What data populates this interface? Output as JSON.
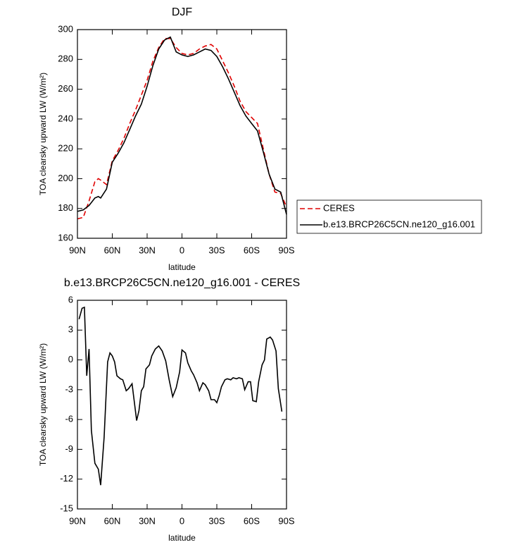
{
  "chart_data": [
    {
      "type": "line",
      "title": "DJF",
      "xlabel": "latitude",
      "ylabel": "TOA clearsky upward LW (W/m²)",
      "x": [
        90,
        85,
        80,
        75,
        72,
        70,
        65,
        60,
        55,
        50,
        45,
        40,
        35,
        30,
        25,
        20,
        15,
        10,
        5,
        0,
        -5,
        -10,
        -15,
        -20,
        -25,
        -30,
        -35,
        -40,
        -45,
        -50,
        -55,
        -60,
        -65,
        -70,
        -75,
        -80,
        -85,
        -90
      ],
      "series": [
        {
          "name": "CERES",
          "color": "#e00000",
          "dashed": true,
          "values": [
            173,
            174,
            185,
            198,
            200,
            199,
            196,
            212,
            219,
            227,
            237,
            246,
            256,
            266,
            279,
            288,
            294,
            294,
            288,
            284,
            283,
            284,
            287,
            289,
            290,
            287,
            279,
            271,
            262,
            252,
            245,
            241,
            237,
            220,
            203,
            191,
            190,
            181
          ]
        },
        {
          "name": "b.e13.BRCP26C5CN.ne120_g16.001",
          "color": "#000000",
          "dashed": false,
          "values": [
            178,
            179,
            182,
            187,
            188,
            187,
            193,
            211,
            217,
            224,
            233,
            242,
            250,
            262,
            276,
            287,
            293,
            295,
            285,
            283,
            282,
            283,
            285,
            287,
            286,
            282,
            275,
            267,
            258,
            249,
            242,
            237,
            232,
            218,
            203,
            193,
            191,
            176
          ]
        }
      ],
      "xlim": [
        90,
        -90
      ],
      "xticks": [
        {
          "value": 90,
          "label": "90N"
        },
        {
          "value": 60,
          "label": "60N"
        },
        {
          "value": 30,
          "label": "30N"
        },
        0,
        {
          "value": -30,
          "label": "30S"
        },
        {
          "value": -60,
          "label": "60S"
        },
        {
          "value": -90,
          "label": "90S"
        }
      ],
      "ylim": [
        160,
        300
      ],
      "yticks": [
        160,
        180,
        200,
        220,
        240,
        260,
        280,
        300
      ],
      "legend": "right"
    },
    {
      "type": "line",
      "title": "b.e13.BRCP26C5CN.ne120_g16.001 - CERES",
      "xlabel": "latitude",
      "ylabel": "TOA clearsky upward LW (W/m²)",
      "x": [
        88.6,
        86,
        84,
        82,
        80,
        78,
        75,
        72,
        70,
        67,
        64,
        62,
        60,
        58,
        56,
        53,
        51,
        48,
        46,
        43,
        39,
        37,
        35,
        33,
        31,
        28,
        26,
        23,
        20,
        17,
        14,
        11,
        8,
        5,
        2,
        0,
        -3,
        -5,
        -8,
        -10,
        -13,
        -15,
        -18,
        -20,
        -23,
        -25,
        -28,
        -30,
        -32,
        -34,
        -37,
        -39,
        -42,
        -44,
        -47,
        -49,
        -52,
        -54,
        -57,
        -59,
        -61,
        -64,
        -66,
        -69,
        -71,
        -73,
        -76,
        -78,
        -81,
        -83,
        -86
      ],
      "values": [
        4.1,
        5.2,
        5.3,
        -1.6,
        1.1,
        -7.1,
        -10.4,
        -11.0,
        -12.6,
        -7.8,
        -0.2,
        0.7,
        0.4,
        -0.2,
        -1.6,
        -1.9,
        -2.0,
        -3.1,
        -2.9,
        -2.4,
        -6.1,
        -5.1,
        -3.1,
        -2.7,
        -0.9,
        -0.5,
        0.4,
        1.1,
        1.4,
        0.9,
        -0.1,
        -2.0,
        -3.7,
        -2.8,
        -1.2,
        1.0,
        0.7,
        -0.3,
        -1.1,
        -1.5,
        -2.3,
        -3.1,
        -2.3,
        -2.5,
        -3.1,
        -4.0,
        -4.0,
        -4.3,
        -3.6,
        -2.7,
        -2.0,
        -1.9,
        -2.0,
        -1.8,
        -1.9,
        -1.8,
        -1.9,
        -3.0,
        -2.2,
        -2.2,
        -4.1,
        -4.2,
        -2.2,
        -0.5,
        0.0,
        2.1,
        2.3,
        2.0,
        0.9,
        -2.9,
        -5.2
      ],
      "color": "#000000",
      "xlim": [
        90,
        -90
      ],
      "xticks": [
        {
          "value": 90,
          "label": "90N"
        },
        {
          "value": 60,
          "label": "60N"
        },
        {
          "value": 30,
          "label": "30N"
        },
        0,
        {
          "value": -30,
          "label": "30S"
        },
        {
          "value": -60,
          "label": "60S"
        },
        {
          "value": -90,
          "label": "90S"
        }
      ],
      "ylim": [
        -15,
        6
      ],
      "yticks": [
        6,
        3,
        0,
        -3,
        -6,
        -9,
        -12,
        -15
      ]
    }
  ]
}
